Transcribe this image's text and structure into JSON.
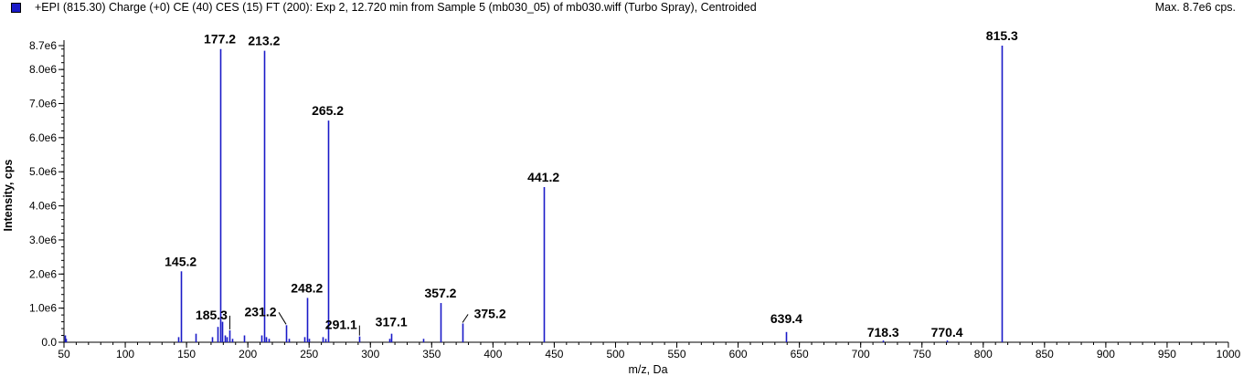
{
  "header": {
    "title": "+EPI (815.30) Charge (+0) CE (40) CES (15) FT (200): Exp 2, 12.720 min from Sample 5 (mb030_05) of mb030.wiff (Turbo Spray), Centroided",
    "max_label": "Max. 8.7e6 cps."
  },
  "colors": {
    "series": "#1a1ac8",
    "axis": "#000000"
  },
  "chart_data": {
    "type": "bar",
    "title": "+EPI (815.30) Charge (+0) CE (40) CES (15) FT (200): Exp 2, 12.720 min from Sample 5 (mb030_05) of mb030.wiff (Turbo Spray), Centroided",
    "xlabel": "m/z, Da",
    "ylabel": "Intensity, cps",
    "xlim": [
      50,
      1000
    ],
    "ylim": [
      0,
      8700000.0
    ],
    "xticks": [
      50,
      100,
      150,
      200,
      250,
      300,
      350,
      400,
      450,
      500,
      550,
      600,
      650,
      700,
      750,
      800,
      850,
      900,
      950,
      1000
    ],
    "yticks": [
      0,
      1000000.0,
      2000000.0,
      3000000.0,
      4000000.0,
      5000000.0,
      6000000.0,
      7000000.0,
      8000000.0,
      8700000.0
    ],
    "ytick_labels": [
      "0.0",
      "1.0e6",
      "2.0e6",
      "3.0e6",
      "4.0e6",
      "5.0e6",
      "6.0e6",
      "7.0e6",
      "8.0e6",
      "8.7e6"
    ],
    "grid": false,
    "peaks": [
      {
        "mz": 50.5,
        "intensity": 200000.0
      },
      {
        "mz": 51.5,
        "intensity": 100000.0
      },
      {
        "mz": 143.1,
        "intensity": 150000.0
      },
      {
        "mz": 145.2,
        "intensity": 2080000.0,
        "label": "145.2"
      },
      {
        "mz": 157.1,
        "intensity": 250000.0
      },
      {
        "mz": 171.1,
        "intensity": 150000.0
      },
      {
        "mz": 175.1,
        "intensity": 450000.0
      },
      {
        "mz": 177.2,
        "intensity": 8600000.0,
        "label": "177.2"
      },
      {
        "mz": 179.1,
        "intensity": 600000.0
      },
      {
        "mz": 181.1,
        "intensity": 200000.0
      },
      {
        "mz": 183.1,
        "intensity": 150000.0
      },
      {
        "mz": 185.3,
        "intensity": 350000.0,
        "label": "185.3"
      },
      {
        "mz": 187.1,
        "intensity": 100000.0
      },
      {
        "mz": 197.1,
        "intensity": 200000.0
      },
      {
        "mz": 211.1,
        "intensity": 200000.0
      },
      {
        "mz": 213.2,
        "intensity": 8550000.0,
        "label": "213.2"
      },
      {
        "mz": 215.1,
        "intensity": 150000.0
      },
      {
        "mz": 217.1,
        "intensity": 100000.0
      },
      {
        "mz": 231.2,
        "intensity": 500000.0,
        "label": "231.2"
      },
      {
        "mz": 233.1,
        "intensity": 100000.0
      },
      {
        "mz": 246.1,
        "intensity": 150000.0
      },
      {
        "mz": 248.2,
        "intensity": 1300000.0,
        "label": "248.2"
      },
      {
        "mz": 250.1,
        "intensity": 100000.0
      },
      {
        "mz": 261.1,
        "intensity": 150000.0
      },
      {
        "mz": 263.1,
        "intensity": 100000.0
      },
      {
        "mz": 265.2,
        "intensity": 6500000.0,
        "label": "265.2"
      },
      {
        "mz": 291.1,
        "intensity": 170000.0,
        "label": "291.1"
      },
      {
        "mz": 315.1,
        "intensity": 100000.0
      },
      {
        "mz": 317.1,
        "intensity": 250000.0,
        "label": "317.1"
      },
      {
        "mz": 343.1,
        "intensity": 100000.0
      },
      {
        "mz": 357.2,
        "intensity": 1150000.0,
        "label": "357.2"
      },
      {
        "mz": 375.2,
        "intensity": 550000.0,
        "label": "375.2"
      },
      {
        "mz": 441.2,
        "intensity": 4550000.0,
        "label": "441.2"
      },
      {
        "mz": 639.4,
        "intensity": 300000.0,
        "label": "639.4"
      },
      {
        "mz": 718.3,
        "intensity": 50000.0,
        "label": "718.3"
      },
      {
        "mz": 770.4,
        "intensity": 50000.0,
        "label": "770.4"
      },
      {
        "mz": 815.3,
        "intensity": 8700000.0,
        "label": "815.3"
      }
    ]
  }
}
